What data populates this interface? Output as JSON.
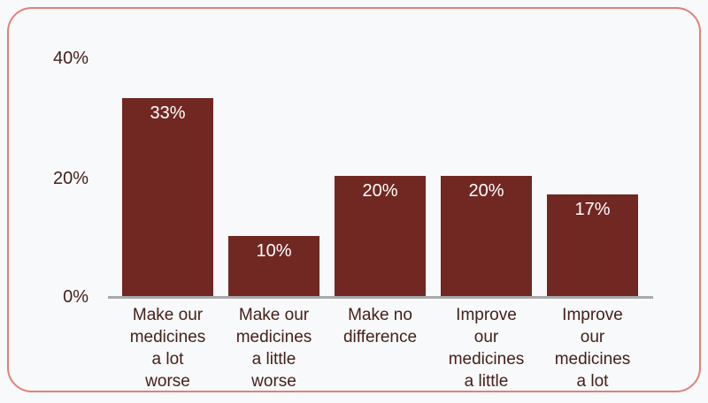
{
  "page": {
    "background_color": "#f8f9fa",
    "card_border_color": "#e28078"
  },
  "chart_data": {
    "type": "bar",
    "title": "",
    "xlabel": "",
    "ylabel": "",
    "categories": [
      "Make our medicines a lot worse",
      "Make our medicines a little worse",
      "Make no difference",
      "Improve our medicines a little",
      "Improve our medicines a lot"
    ],
    "category_display": [
      "Make our\nmedicines\na lot\nworse",
      "Make our\nmedicines\na little\nworse",
      "Make no\ndifference",
      "Improve\nour\nmedicines\na little",
      "Improve\nour\nmedicines\na lot"
    ],
    "values": [
      33,
      10,
      20,
      20,
      17
    ],
    "value_labels": [
      "33%",
      "10%",
      "20%",
      "20%",
      "17%"
    ],
    "ylim": [
      0,
      40
    ],
    "yticks": [
      {
        "value": 40,
        "label": "40%"
      },
      {
        "value": 20,
        "label": "20%"
      },
      {
        "value": 0,
        "label": "0%"
      }
    ],
    "grid": false,
    "legend": "none",
    "bar_color": "#712822",
    "value_label_color": "#ffffff",
    "axis_line_color": "#a9a9a9",
    "tick_label_color": "#45201a"
  }
}
